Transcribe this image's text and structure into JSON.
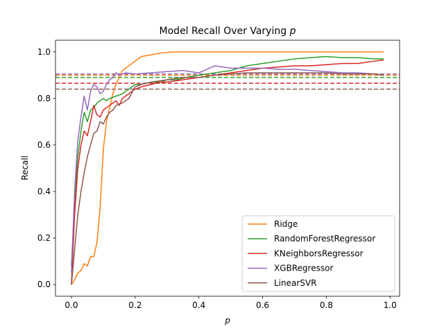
{
  "chart_data": {
    "type": "line",
    "title": "Model Recall Over Varying p",
    "title_prefix": "Model Recall Over Varying ",
    "title_var": "p",
    "xlabel": "p",
    "ylabel": "Recall",
    "xlim": [
      -0.05,
      1.03
    ],
    "ylim": [
      -0.05,
      1.05
    ],
    "xticks": [
      0.0,
      0.2,
      0.4,
      0.6,
      0.8,
      1.0
    ],
    "xtick_labels": [
      "0.0",
      "0.2",
      "0.4",
      "0.6",
      "0.8",
      "1.0"
    ],
    "yticks": [
      0.0,
      0.2,
      0.4,
      0.6,
      0.8,
      1.0
    ],
    "ytick_labels": [
      "0.0",
      "0.2",
      "0.4",
      "0.6",
      "0.8",
      "1.0"
    ],
    "grid": false,
    "legend_position": "lower-right",
    "series": [
      {
        "name": "Ridge",
        "color": "#ff7f0e",
        "baseline": 0.9,
        "x": [
          0.0,
          0.01,
          0.02,
          0.03,
          0.04,
          0.05,
          0.06,
          0.07,
          0.08,
          0.09,
          0.1,
          0.11,
          0.12,
          0.13,
          0.14,
          0.15,
          0.16,
          0.17,
          0.18,
          0.2,
          0.22,
          0.24,
          0.26,
          0.28,
          0.3,
          0.34,
          0.4,
          0.5,
          0.6,
          0.7,
          0.8,
          0.9,
          0.98
        ],
        "y": [
          0.0,
          0.02,
          0.05,
          0.06,
          0.09,
          0.08,
          0.12,
          0.12,
          0.18,
          0.33,
          0.58,
          0.7,
          0.76,
          0.82,
          0.86,
          0.89,
          0.92,
          0.93,
          0.94,
          0.96,
          0.98,
          0.985,
          0.99,
          0.995,
          0.998,
          1.0,
          1.0,
          1.0,
          1.0,
          1.0,
          1.0,
          1.0,
          1.0
        ]
      },
      {
        "name": "RandomForestRegressor",
        "color": "#2ca02c",
        "baseline": 0.89,
        "x": [
          0.0,
          0.01,
          0.02,
          0.03,
          0.04,
          0.05,
          0.06,
          0.07,
          0.08,
          0.09,
          0.1,
          0.11,
          0.12,
          0.14,
          0.16,
          0.18,
          0.2,
          0.22,
          0.25,
          0.28,
          0.3,
          0.33,
          0.36,
          0.4,
          0.45,
          0.5,
          0.55,
          0.6,
          0.65,
          0.7,
          0.75,
          0.8,
          0.85,
          0.9,
          0.95,
          0.98
        ],
        "y": [
          0.08,
          0.35,
          0.55,
          0.66,
          0.74,
          0.7,
          0.75,
          0.76,
          0.78,
          0.79,
          0.8,
          0.79,
          0.8,
          0.81,
          0.82,
          0.84,
          0.86,
          0.86,
          0.87,
          0.87,
          0.88,
          0.88,
          0.89,
          0.9,
          0.91,
          0.92,
          0.94,
          0.95,
          0.96,
          0.97,
          0.975,
          0.98,
          0.975,
          0.975,
          0.97,
          0.97
        ]
      },
      {
        "name": "KNeighborsRegressor",
        "color": "#d62728",
        "baseline": 0.865,
        "x": [
          0.0,
          0.01,
          0.02,
          0.03,
          0.04,
          0.05,
          0.06,
          0.07,
          0.08,
          0.09,
          0.1,
          0.11,
          0.12,
          0.14,
          0.15,
          0.16,
          0.18,
          0.2,
          0.22,
          0.25,
          0.28,
          0.3,
          0.35,
          0.4,
          0.45,
          0.5,
          0.55,
          0.6,
          0.65,
          0.7,
          0.75,
          0.8,
          0.85,
          0.9,
          0.95,
          0.98
        ],
        "y": [
          0.0,
          0.3,
          0.5,
          0.6,
          0.66,
          0.64,
          0.7,
          0.77,
          0.73,
          0.72,
          0.75,
          0.76,
          0.77,
          0.79,
          0.77,
          0.8,
          0.82,
          0.84,
          0.85,
          0.86,
          0.87,
          0.87,
          0.88,
          0.89,
          0.9,
          0.91,
          0.92,
          0.93,
          0.935,
          0.94,
          0.94,
          0.945,
          0.95,
          0.95,
          0.96,
          0.965
        ]
      },
      {
        "name": "XGBRegressor",
        "color": "#9467bd",
        "baseline": 0.905,
        "x": [
          0.0,
          0.01,
          0.02,
          0.03,
          0.04,
          0.05,
          0.06,
          0.07,
          0.08,
          0.09,
          0.1,
          0.11,
          0.12,
          0.13,
          0.14,
          0.15,
          0.17,
          0.2,
          0.25,
          0.3,
          0.35,
          0.4,
          0.45,
          0.5,
          0.55,
          0.6,
          0.65,
          0.7,
          0.75,
          0.8,
          0.85,
          0.9,
          0.95,
          0.98
        ],
        "y": [
          0.05,
          0.4,
          0.62,
          0.72,
          0.81,
          0.75,
          0.83,
          0.86,
          0.85,
          0.82,
          0.83,
          0.86,
          0.88,
          0.89,
          0.91,
          0.9,
          0.91,
          0.905,
          0.91,
          0.915,
          0.92,
          0.91,
          0.94,
          0.93,
          0.93,
          0.93,
          0.925,
          0.925,
          0.92,
          0.915,
          0.91,
          0.91,
          0.905,
          0.9
        ]
      },
      {
        "name": "LinearSVR",
        "color": "#8c564b",
        "baseline": 0.84,
        "x": [
          0.0,
          0.01,
          0.02,
          0.03,
          0.04,
          0.05,
          0.06,
          0.07,
          0.08,
          0.09,
          0.1,
          0.11,
          0.12,
          0.13,
          0.14,
          0.16,
          0.18,
          0.2,
          0.22,
          0.25,
          0.3,
          0.35,
          0.4,
          0.45,
          0.5,
          0.55,
          0.6,
          0.65,
          0.7,
          0.75,
          0.8,
          0.85,
          0.9,
          0.95,
          0.98
        ],
        "y": [
          0.0,
          0.15,
          0.3,
          0.4,
          0.48,
          0.55,
          0.6,
          0.65,
          0.66,
          0.7,
          0.69,
          0.72,
          0.74,
          0.75,
          0.77,
          0.78,
          0.8,
          0.85,
          0.86,
          0.87,
          0.88,
          0.89,
          0.89,
          0.9,
          0.905,
          0.91,
          0.91,
          0.91,
          0.91,
          0.91,
          0.91,
          0.905,
          0.905,
          0.905,
          0.9
        ]
      }
    ]
  }
}
